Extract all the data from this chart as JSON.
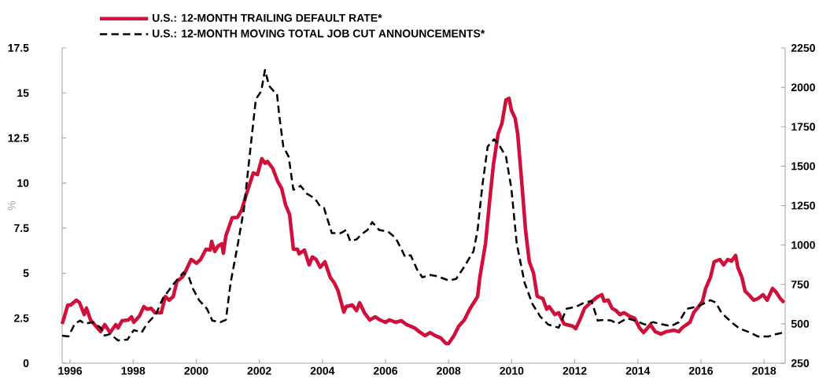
{
  "chart_data": {
    "type": "line",
    "legend": "top left",
    "ylabel": "%",
    "xlim": [
      1995.75,
      2018.67
    ],
    "xticks": [
      1996,
      1998,
      2000,
      2002,
      2004,
      2006,
      2008,
      2010,
      2012,
      2014,
      2016,
      2018
    ],
    "ylim": [
      0,
      17.5
    ],
    "yticks": [
      0,
      2.5,
      5,
      7.5,
      10,
      12.5,
      15,
      17.5
    ],
    "y2lim": [
      250,
      2250
    ],
    "y2ticks": [
      250,
      500,
      750,
      1000,
      1250,
      1500,
      1750,
      2000,
      2250
    ],
    "series": [
      {
        "name": "U.S.: 12-MONTH TRAILING DEFAULT RATE*",
        "color": "#d0103a",
        "line_style": "solid",
        "x": [
          1995.75,
          1995.93,
          1996.02,
          1996.2,
          1996.3,
          1996.45,
          1996.52,
          1996.65,
          1996.97,
          1997.1,
          1997.27,
          1997.45,
          1997.52,
          1997.65,
          1997.85,
          1997.95,
          1998.02,
          1998.2,
          1998.34,
          1998.44,
          1998.57,
          1998.69,
          1998.89,
          1999.02,
          1999.14,
          1999.27,
          1999.39,
          1999.57,
          1999.69,
          1999.84,
          2000.01,
          2000.14,
          2000.31,
          2000.44,
          2000.49,
          2000.59,
          2000.69,
          2000.81,
          2000.86,
          2000.94,
          2001.14,
          2001.31,
          2001.44,
          2001.59,
          2001.81,
          2001.94,
          2002.08,
          2002.18,
          2002.26,
          2002.43,
          2002.58,
          2002.71,
          2002.83,
          2002.96,
          2003.08,
          2003.21,
          2003.26,
          2003.43,
          2003.58,
          2003.68,
          2003.8,
          2003.93,
          2004.08,
          2004.25,
          2004.38,
          2004.5,
          2004.68,
          2004.75,
          2004.95,
          2005.08,
          2005.18,
          2005.33,
          2005.5,
          2005.68,
          2005.83,
          2006.0,
          2006.12,
          2006.32,
          2006.5,
          2006.67,
          2006.92,
          2007.07,
          2007.25,
          2007.42,
          2007.57,
          2007.75,
          2007.92,
          2008.0,
          2008.17,
          2008.32,
          2008.5,
          2008.67,
          2008.92,
          2008.99,
          2009.17,
          2009.29,
          2009.42,
          2009.57,
          2009.69,
          2009.82,
          2009.92,
          2009.99,
          2010.11,
          2010.19,
          2010.31,
          2010.44,
          2010.56,
          2010.69,
          2010.81,
          2010.99,
          2011.11,
          2011.19,
          2011.37,
          2011.49,
          2011.66,
          2011.94,
          2012.03,
          2012.16,
          2012.31,
          2012.56,
          2012.73,
          2012.86,
          2012.93,
          2013.06,
          2013.18,
          2013.31,
          2013.43,
          2013.56,
          2013.73,
          2013.9,
          2014.05,
          2014.18,
          2014.4,
          2014.55,
          2014.73,
          2014.9,
          2015.15,
          2015.3,
          2015.4,
          2015.65,
          2015.78,
          2015.93,
          2016.05,
          2016.15,
          2016.3,
          2016.42,
          2016.6,
          2016.72,
          2016.85,
          2016.97,
          2017.1,
          2017.17,
          2017.3,
          2017.4,
          2017.52,
          2017.67,
          2017.8,
          2017.97,
          2018.1,
          2018.27,
          2018.39,
          2018.52,
          2018.64
        ],
        "values": [
          2.18,
          3.23,
          3.23,
          3.5,
          3.36,
          2.7,
          3.06,
          2.4,
          1.75,
          2.14,
          1.7,
          2.14,
          1.96,
          2.36,
          2.4,
          2.57,
          2.27,
          2.62,
          3.14,
          3.0,
          3.05,
          2.8,
          2.8,
          3.7,
          3.5,
          3.7,
          4.54,
          4.8,
          5.2,
          5.76,
          5.55,
          5.76,
          6.33,
          6.28,
          6.76,
          6.2,
          6.5,
          6.63,
          6.1,
          7.07,
          8.07,
          8.1,
          8.5,
          9.38,
          10.56,
          10.47,
          11.35,
          11.1,
          11.2,
          10.8,
          10.1,
          9.69,
          8.8,
          8.25,
          6.33,
          6.33,
          6.07,
          6.28,
          5.46,
          5.9,
          5.76,
          5.32,
          5.63,
          4.76,
          4.45,
          4.0,
          2.84,
          3.14,
          3.23,
          2.92,
          3.36,
          2.8,
          2.4,
          2.57,
          2.4,
          2.27,
          2.4,
          2.27,
          2.36,
          2.14,
          1.96,
          1.75,
          1.53,
          1.7,
          1.53,
          1.4,
          1.09,
          1.09,
          1.53,
          2.05,
          2.4,
          3.0,
          3.7,
          4.76,
          6.63,
          8.8,
          11.0,
          12.74,
          13.3,
          14.62,
          14.7,
          14.05,
          13.6,
          12.74,
          10.26,
          7.38,
          5.63,
          5.02,
          3.71,
          3.58,
          3.0,
          3.14,
          2.7,
          2.8,
          2.18,
          2.05,
          1.92,
          2.4,
          3.05,
          3.45,
          3.7,
          3.8,
          3.45,
          3.5,
          3.05,
          2.92,
          2.7,
          2.8,
          2.62,
          2.49,
          1.96,
          1.7,
          2.14,
          1.75,
          1.62,
          1.75,
          1.83,
          1.75,
          1.96,
          2.27,
          2.84,
          3.14,
          3.45,
          4.15,
          4.76,
          5.63,
          5.76,
          5.46,
          5.76,
          5.67,
          5.98,
          5.32,
          4.76,
          4.0,
          3.8,
          3.5,
          3.58,
          3.8,
          3.5,
          4.15,
          3.93,
          3.58,
          3.36
        ]
      },
      {
        "name": "U.S.: 12-MONTH MOVING TOTAL JOB CUT ANNOUNCEMENTS*",
        "color": "#000000",
        "line_style": "dashed",
        "axis": "y2",
        "x": [
          1995.75,
          1995.95,
          1996.15,
          1996.32,
          1996.47,
          1996.72,
          1996.97,
          1997.1,
          1997.27,
          1997.52,
          1997.82,
          1998.02,
          1998.27,
          1998.44,
          1998.72,
          1998.94,
          1999.27,
          1999.59,
          1999.77,
          1999.89,
          2000.09,
          2000.34,
          2000.51,
          2000.76,
          2000.94,
          2001.09,
          2001.31,
          2001.51,
          2001.69,
          2001.89,
          2002.06,
          2002.18,
          2002.31,
          2002.46,
          2002.56,
          2002.63,
          2002.76,
          2002.93,
          2003.08,
          2003.31,
          2003.51,
          2003.76,
          2003.93,
          2004.05,
          2004.3,
          2004.58,
          2004.75,
          2004.88,
          2005.08,
          2005.25,
          2005.43,
          2005.58,
          2005.8,
          2006.08,
          2006.32,
          2006.5,
          2006.62,
          2006.8,
          2007.0,
          2007.17,
          2007.42,
          2007.67,
          2008.0,
          2008.24,
          2008.49,
          2008.79,
          2008.92,
          2009.07,
          2009.24,
          2009.44,
          2009.57,
          2009.82,
          2009.99,
          2010.16,
          2010.41,
          2010.66,
          2010.91,
          2011.16,
          2011.49,
          2011.74,
          2012.06,
          2012.31,
          2012.53,
          2012.73,
          2012.93,
          2013.16,
          2013.36,
          2013.66,
          2013.9,
          2014.23,
          2014.48,
          2014.8,
          2015.05,
          2015.3,
          2015.55,
          2015.9,
          2016.3,
          2016.47,
          2016.65,
          2016.97,
          2017.22,
          2017.55,
          2017.8,
          2018.15,
          2018.39,
          2018.64
        ],
        "values": [
          425,
          420,
          500,
          520,
          500,
          510,
          475,
          425,
          435,
          395,
          400,
          460,
          445,
          500,
          560,
          660,
          750,
          825,
          795,
          725,
          650,
          595,
          520,
          510,
          525,
          760,
          995,
          1225,
          1560,
          1925,
          1975,
          2110,
          2010,
          1975,
          1960,
          1825,
          1625,
          1560,
          1350,
          1375,
          1325,
          1295,
          1245,
          1235,
          1075,
          1075,
          1095,
          1025,
          1035,
          1070,
          1095,
          1145,
          1095,
          1085,
          1045,
          975,
          925,
          935,
          845,
          795,
          810,
          800,
          775,
          785,
          860,
          960,
          1095,
          1375,
          1625,
          1670,
          1645,
          1560,
          1360,
          1010,
          760,
          625,
          545,
          495,
          475,
          595,
          610,
          635,
          645,
          520,
          525,
          520,
          500,
          535,
          520,
          495,
          510,
          495,
          485,
          510,
          595,
          610,
          650,
          635,
          570,
          510,
          470,
          445,
          420,
          420,
          435,
          445
        ]
      }
    ]
  }
}
